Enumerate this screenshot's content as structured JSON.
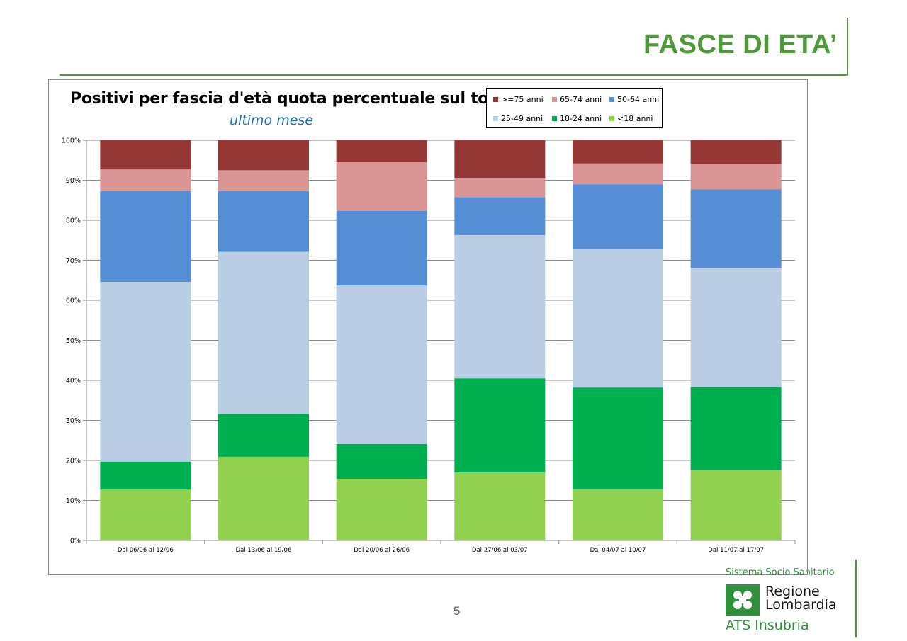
{
  "slide": {
    "title": "FASCE DI ETA’",
    "page_number": "5"
  },
  "logo": {
    "top_text": "Sistema Socio Sanitario",
    "region_line1": "Regione",
    "region_line2": "Lombardia",
    "bottom_text": "ATS Insubria"
  },
  "colors": {
    "title_green": "#4e9a3a",
    "subtitle_blue": "#1f6fb2"
  },
  "chart_data": {
    "type": "bar",
    "stacked": true,
    "normalized": true,
    "title": "Positivi per fascia d'età quota percentuale sul totale",
    "subtitle": "ultimo mese",
    "xlabel": "",
    "ylabel": "",
    "ylim": [
      0,
      100
    ],
    "yticks": [
      0,
      10,
      20,
      30,
      40,
      50,
      60,
      70,
      80,
      90,
      100
    ],
    "ytick_labels": [
      "0%",
      "10%",
      "20%",
      "30%",
      "40%",
      "50%",
      "60%",
      "70%",
      "80%",
      "90%",
      "100%"
    ],
    "grid": true,
    "legend_position": "top-right",
    "categories": [
      "Dal 06/06 al 12/06",
      "Dal 13/06 al 19/06",
      "Dal 20/06 al 26/06",
      "Dal 27/06 al 03/07",
      "Dal 04/07 al 10/07",
      "Dal 11/07 al 17/07"
    ],
    "series": [
      {
        "name": "<18 anni",
        "color": "#92d050",
        "values": [
          12.7,
          20.9,
          15.4,
          17.0,
          12.8,
          17.5
        ]
      },
      {
        "name": "18-24 anni",
        "color": "#00b050",
        "values": [
          7.0,
          10.7,
          8.7,
          23.5,
          25.4,
          20.8
        ]
      },
      {
        "name": "25-49 anni",
        "color": "#b9cde5",
        "values": [
          44.9,
          40.5,
          39.6,
          35.8,
          34.6,
          29.8
        ]
      },
      {
        "name": "50-64 anni",
        "color": "#558ed5",
        "values": [
          22.7,
          15.2,
          18.6,
          9.5,
          16.2,
          19.6
        ]
      },
      {
        "name": "65-74 anni",
        "color": "#d99694",
        "values": [
          5.4,
          5.2,
          12.2,
          4.7,
          5.2,
          6.4
        ]
      },
      {
        "name": ">=75 anni",
        "color": "#953735",
        "values": [
          7.3,
          7.5,
          5.5,
          9.5,
          5.8,
          5.9
        ]
      }
    ],
    "legend_order": [
      ">=75 anni",
      "65-74 anni",
      "50-64 anni",
      "25-49 anni",
      "18-24 anni",
      "<18 anni"
    ]
  }
}
